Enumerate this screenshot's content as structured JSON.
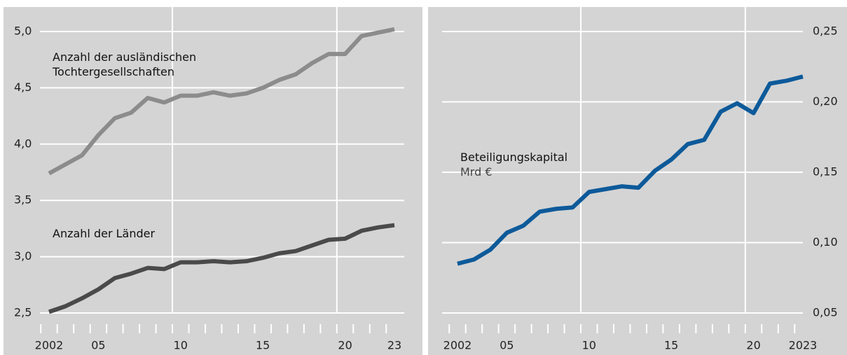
{
  "chart_data": [
    {
      "type": "line",
      "x": [
        2002,
        2003,
        2004,
        2005,
        2006,
        2007,
        2008,
        2009,
        2010,
        2011,
        2012,
        2013,
        2014,
        2015,
        2016,
        2017,
        2018,
        2019,
        2020,
        2021,
        2022,
        2023
      ],
      "xticks": [
        {
          "value": 2002,
          "label": "2002"
        },
        {
          "value": 2005,
          "label": "05"
        },
        {
          "value": 2010,
          "label": "10"
        },
        {
          "value": 2015,
          "label": "15"
        },
        {
          "value": 2020,
          "label": "20"
        },
        {
          "value": 2023,
          "label": "23"
        }
      ],
      "xlim": [
        2002,
        2023
      ],
      "ylim": [
        2.5,
        5.0
      ],
      "yticks": [
        {
          "value": 2.5,
          "label": "2,5"
        },
        {
          "value": 3.0,
          "label": "3,0"
        },
        {
          "value": 3.5,
          "label": "3,5"
        },
        {
          "value": 4.0,
          "label": "4,0"
        },
        {
          "value": 4.5,
          "label": "4,5"
        },
        {
          "value": 5.0,
          "label": "5,0"
        }
      ],
      "grid": true,
      "series": [
        {
          "name": "Anzahl der ausländischen Tochtergesellschaften",
          "color": "#8c8c8c",
          "values": [
            3.74,
            3.82,
            3.9,
            4.08,
            4.23,
            4.28,
            4.41,
            4.37,
            4.43,
            4.43,
            4.46,
            4.43,
            4.45,
            4.5,
            4.57,
            4.62,
            4.72,
            4.8,
            4.8,
            4.96,
            4.99,
            5.02
          ]
        },
        {
          "name": "Anzahl der Länder",
          "color": "#4a4a4a",
          "values": [
            2.51,
            2.56,
            2.63,
            2.71,
            2.81,
            2.85,
            2.9,
            2.89,
            2.95,
            2.95,
            2.96,
            2.95,
            2.96,
            2.99,
            3.03,
            3.05,
            3.1,
            3.15,
            3.16,
            3.23,
            3.26,
            3.28
          ]
        }
      ]
    },
    {
      "type": "line",
      "x": [
        2002,
        2003,
        2004,
        2005,
        2006,
        2007,
        2008,
        2009,
        2010,
        2011,
        2012,
        2013,
        2014,
        2015,
        2016,
        2017,
        2018,
        2019,
        2020,
        2021,
        2022,
        2023
      ],
      "xticks": [
        {
          "value": 2002,
          "label": "2002"
        },
        {
          "value": 2005,
          "label": "05"
        },
        {
          "value": 2010,
          "label": "10"
        },
        {
          "value": 2015,
          "label": "15"
        },
        {
          "value": 2020,
          "label": "20"
        },
        {
          "value": 2023,
          "label": "2023"
        }
      ],
      "xlim": [
        2002,
        2023
      ],
      "y2lim": [
        0.05,
        0.25
      ],
      "y2ticks": [
        {
          "value": 0.05,
          "label": "0,05"
        },
        {
          "value": 0.1,
          "label": "0,10"
        },
        {
          "value": 0.15,
          "label": "0,15"
        },
        {
          "value": 0.2,
          "label": "0,20"
        },
        {
          "value": 0.25,
          "label": "0,25"
        }
      ],
      "grid": true,
      "unit": "Mrd €",
      "series": [
        {
          "name": "Beteiligungskapital",
          "color": "#0d5a9a",
          "axis": "y2",
          "values": [
            0.085,
            0.088,
            0.095,
            0.107,
            0.112,
            0.122,
            0.124,
            0.125,
            0.136,
            0.138,
            0.14,
            0.139,
            0.151,
            0.159,
            0.17,
            0.173,
            0.193,
            0.199,
            0.192,
            0.213,
            0.215,
            0.218
          ]
        }
      ]
    }
  ]
}
